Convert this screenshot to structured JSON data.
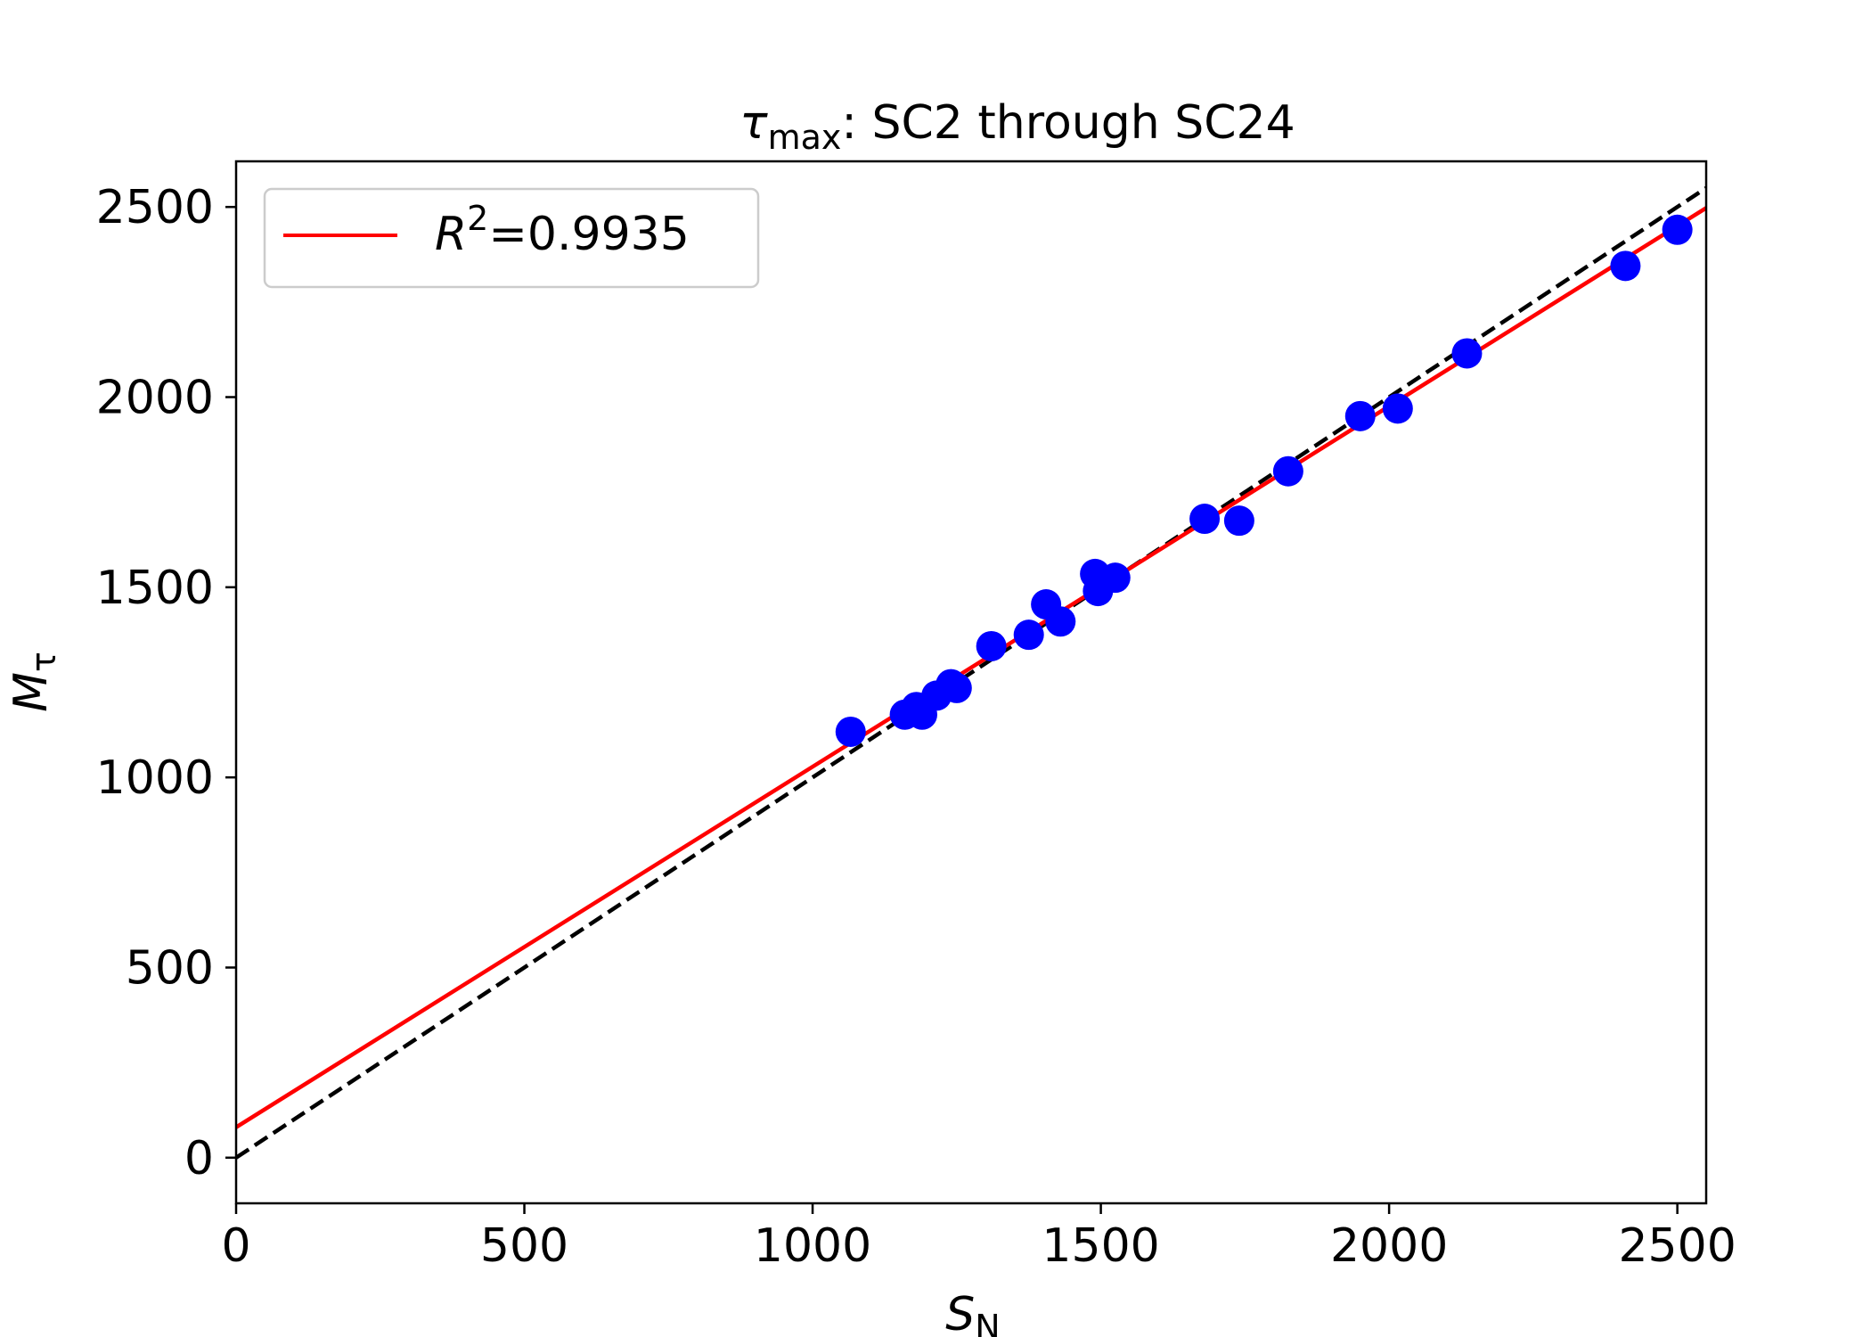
{
  "chart_data": {
    "type": "scatter",
    "title": {
      "symbol": "τ",
      "subscript": "max",
      "text": ": SC2 through SC24"
    },
    "xlabel": {
      "symbol": "S",
      "subscript": "N"
    },
    "ylabel": {
      "symbol": "M",
      "subscript": "τ"
    },
    "xlim": [
      0,
      2550
    ],
    "ylim": [
      -120,
      2620
    ],
    "xticks": [
      0,
      500,
      1000,
      1500,
      2000,
      2500
    ],
    "yticks": [
      0,
      500,
      1000,
      1500,
      2000,
      2500
    ],
    "grid": false,
    "legend": {
      "placement": "top-left",
      "entries": [
        {
          "symbol": "R",
          "superscript": "2",
          "text": "=0.9935",
          "color": "#ff0000"
        }
      ]
    },
    "points": {
      "color": "#0000ff",
      "x": [
        1066,
        1160,
        1180,
        1190,
        1215,
        1240,
        1250,
        1310,
        1375,
        1405,
        1430,
        1490,
        1495,
        1525,
        1680,
        1740,
        1825,
        1950,
        2015,
        2135,
        2410,
        2500
      ],
      "y": [
        1120,
        1165,
        1185,
        1165,
        1215,
        1245,
        1235,
        1345,
        1375,
        1455,
        1410,
        1535,
        1490,
        1525,
        1680,
        1675,
        1805,
        1950,
        1970,
        2115,
        2345,
        2440
      ]
    },
    "fit_line": {
      "color": "#ff0000",
      "style": "solid",
      "slope": 0.948,
      "intercept": 80
    },
    "identity_line": {
      "color": "#000000",
      "style": "dashed",
      "slope": 1,
      "intercept": 0
    }
  }
}
